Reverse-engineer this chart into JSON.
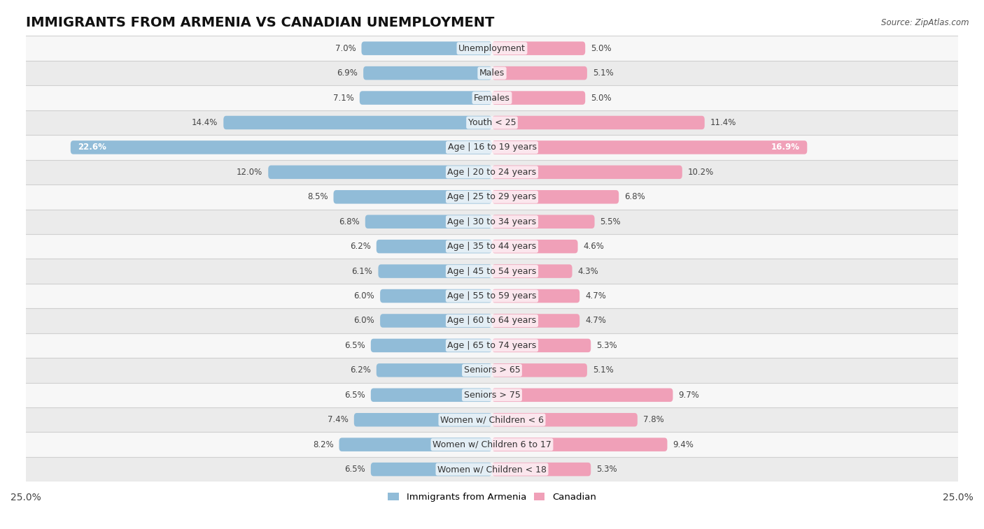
{
  "title": "IMMIGRANTS FROM ARMENIA VS CANADIAN UNEMPLOYMENT",
  "source": "Source: ZipAtlas.com",
  "categories": [
    "Unemployment",
    "Males",
    "Females",
    "Youth < 25",
    "Age | 16 to 19 years",
    "Age | 20 to 24 years",
    "Age | 25 to 29 years",
    "Age | 30 to 34 years",
    "Age | 35 to 44 years",
    "Age | 45 to 54 years",
    "Age | 55 to 59 years",
    "Age | 60 to 64 years",
    "Age | 65 to 74 years",
    "Seniors > 65",
    "Seniors > 75",
    "Women w/ Children < 6",
    "Women w/ Children 6 to 17",
    "Women w/ Children < 18"
  ],
  "armenia_values": [
    7.0,
    6.9,
    7.1,
    14.4,
    22.6,
    12.0,
    8.5,
    6.8,
    6.2,
    6.1,
    6.0,
    6.0,
    6.5,
    6.2,
    6.5,
    7.4,
    8.2,
    6.5
  ],
  "canadian_values": [
    5.0,
    5.1,
    5.0,
    11.4,
    16.9,
    10.2,
    6.8,
    5.5,
    4.6,
    4.3,
    4.7,
    4.7,
    5.3,
    5.1,
    9.7,
    7.8,
    9.4,
    5.3
  ],
  "armenia_color": "#91bcd8",
  "canadian_color": "#f0a0b8",
  "row_color_even": "#f7f7f7",
  "row_color_odd": "#ebebeb",
  "row_separator_color": "#d0d0d0",
  "axis_limit": 25.0,
  "legend_armenia": "Immigrants from Armenia",
  "legend_canadian": "Canadian",
  "title_fontsize": 14,
  "label_fontsize": 9,
  "value_fontsize": 8.5,
  "bar_height": 0.55
}
